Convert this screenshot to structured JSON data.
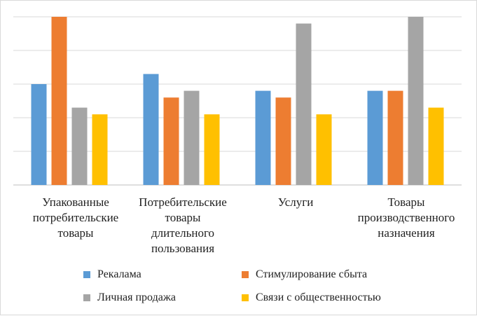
{
  "chart_data": {
    "type": "bar",
    "title": "",
    "xlabel": "",
    "ylabel": "",
    "ylim": [
      0,
      5
    ],
    "grid": true,
    "legend_position": "bottom",
    "categories": [
      "Упакованные потребительские товары",
      "Потребительские товары длительного пользования",
      "Услуги",
      "Товары производственного назначения"
    ],
    "category_lines": [
      [
        "Упакованные",
        "потребительские",
        "товары"
      ],
      [
        "Потребительские",
        "товары",
        "длительного",
        "пользования"
      ],
      [
        "Услуги"
      ],
      [
        "Товары",
        "производственного",
        "назначения"
      ]
    ],
    "series": [
      {
        "name": "Рекалама",
        "color": "#5b9bd5",
        "values": [
          3.0,
          3.3,
          2.8,
          2.8
        ]
      },
      {
        "name": "Стимулирование сбыта",
        "color": "#ed7d31",
        "values": [
          5.0,
          2.6,
          2.6,
          2.8
        ]
      },
      {
        "name": "Личная продажа",
        "color": "#a5a5a5",
        "values": [
          2.3,
          2.8,
          4.8,
          5.0
        ]
      },
      {
        "name": "Связи с общественностью",
        "color": "#ffc000",
        "values": [
          2.1,
          2.1,
          2.1,
          2.3
        ]
      }
    ]
  }
}
